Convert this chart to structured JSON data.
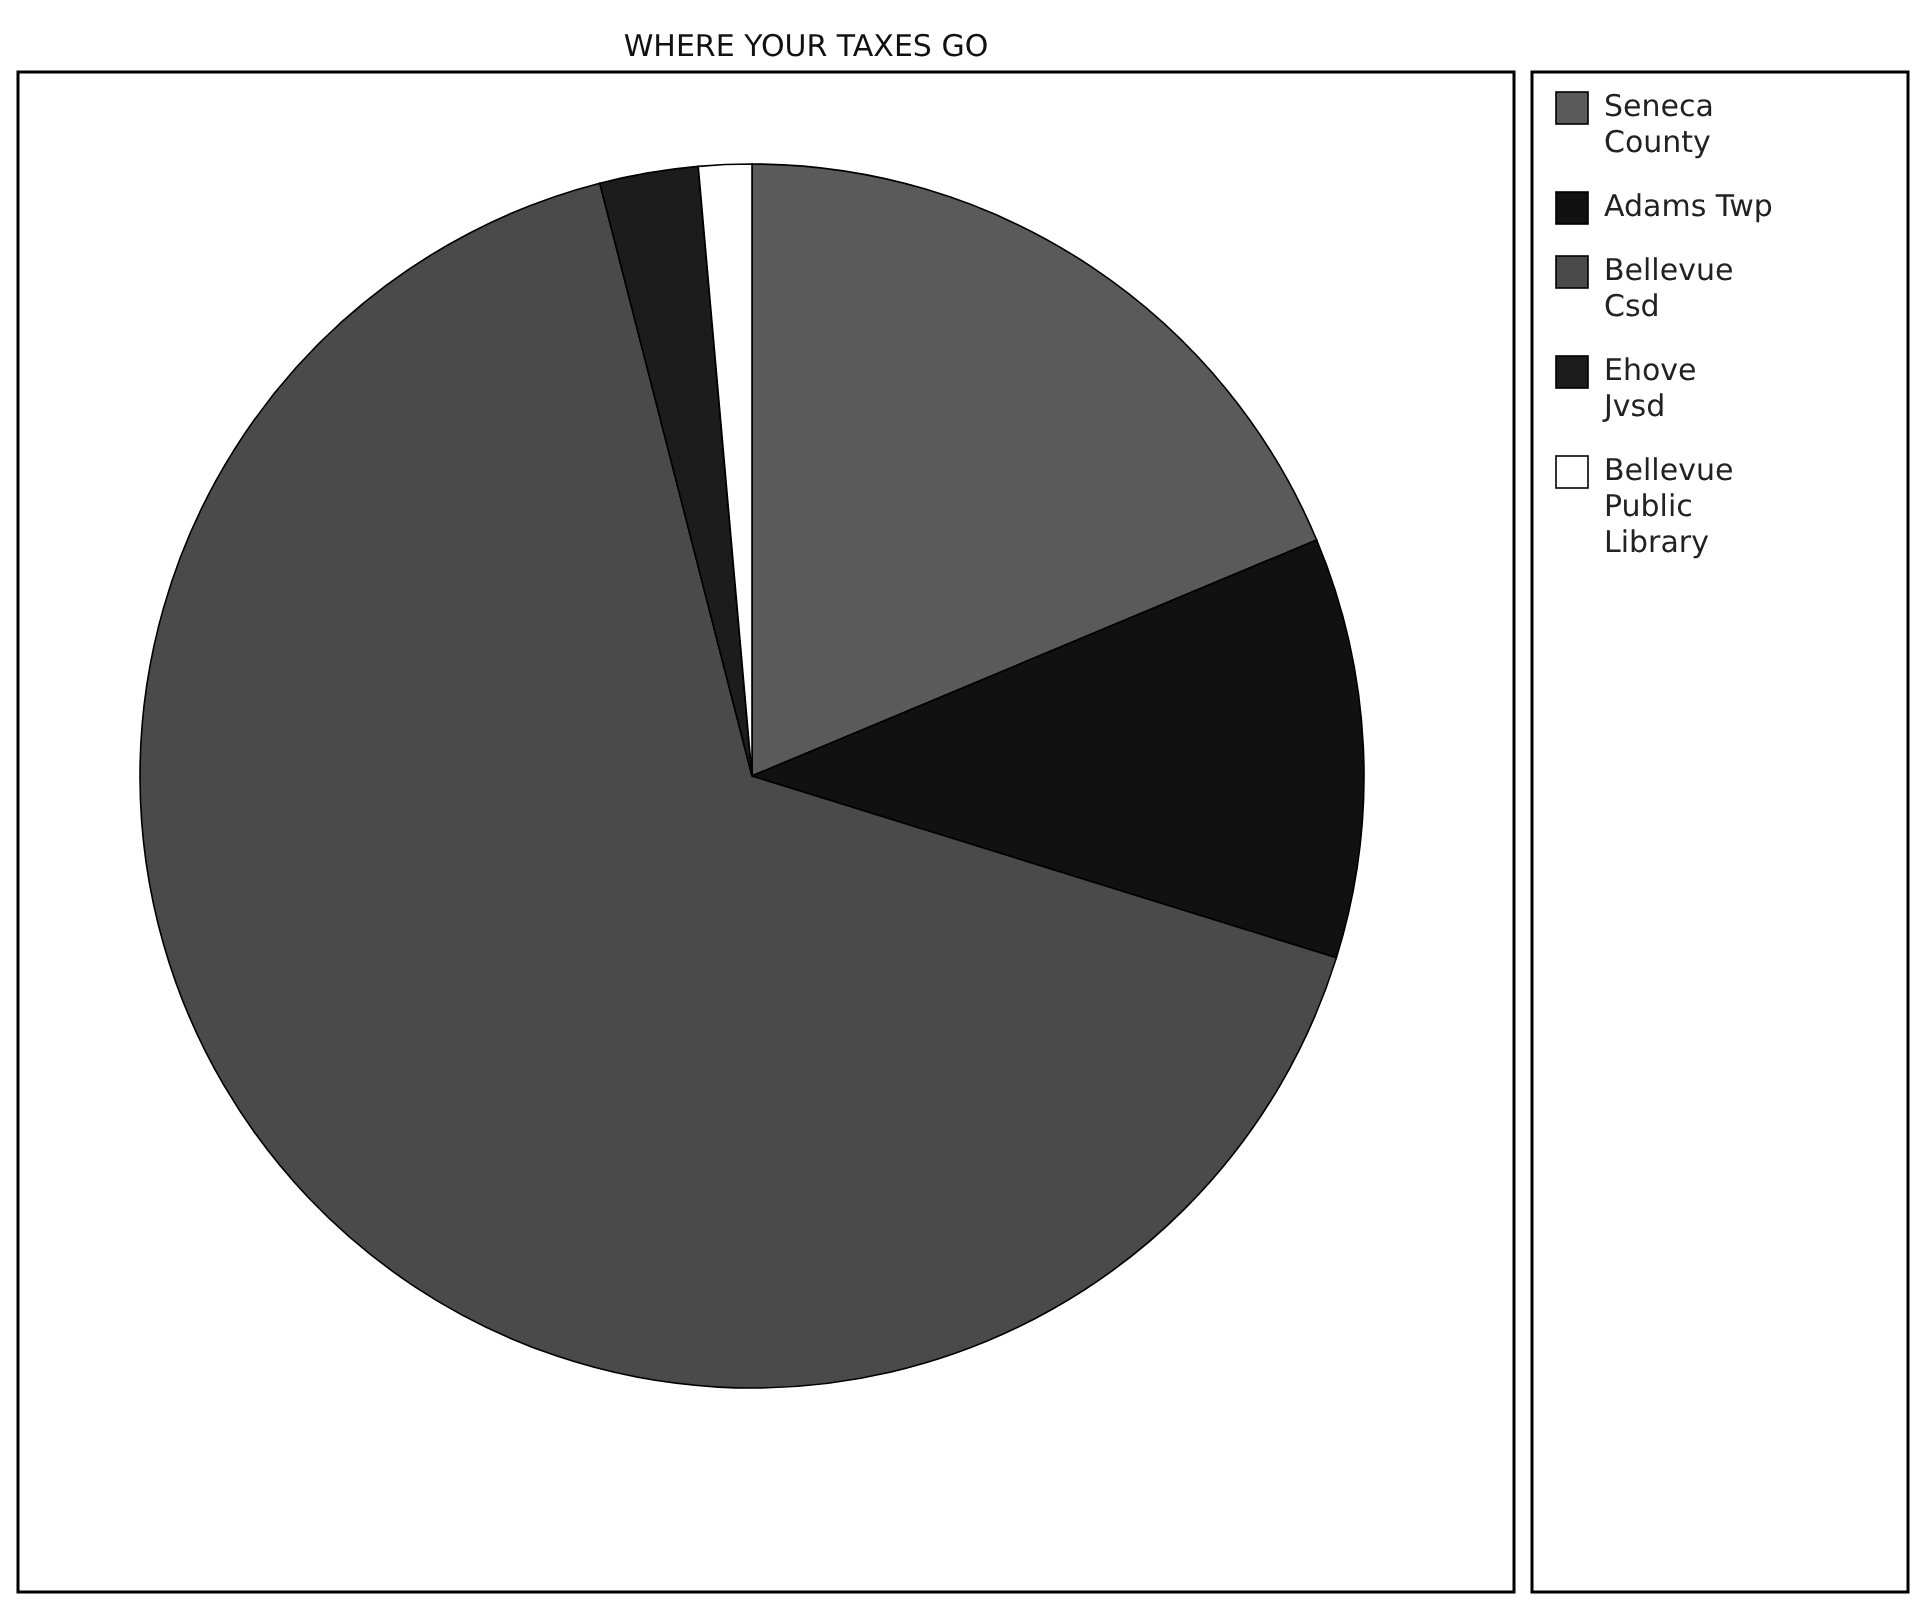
{
  "chart_data": {
    "type": "pie",
    "title": "WHERE YOUR TAXES GO",
    "categories": [
      "Seneca County",
      "Adams Twp",
      "Bellevue Csd",
      "Ehove Jvsd",
      "Bellevue Public Library"
    ],
    "values": [
      18.7,
      11.1,
      66.2,
      2.6,
      1.4
    ],
    "colors": [
      "#5a5a5a",
      "#111111",
      "#4a4a4a",
      "#1c1c1c",
      "#ffffff"
    ],
    "legend": "right"
  }
}
